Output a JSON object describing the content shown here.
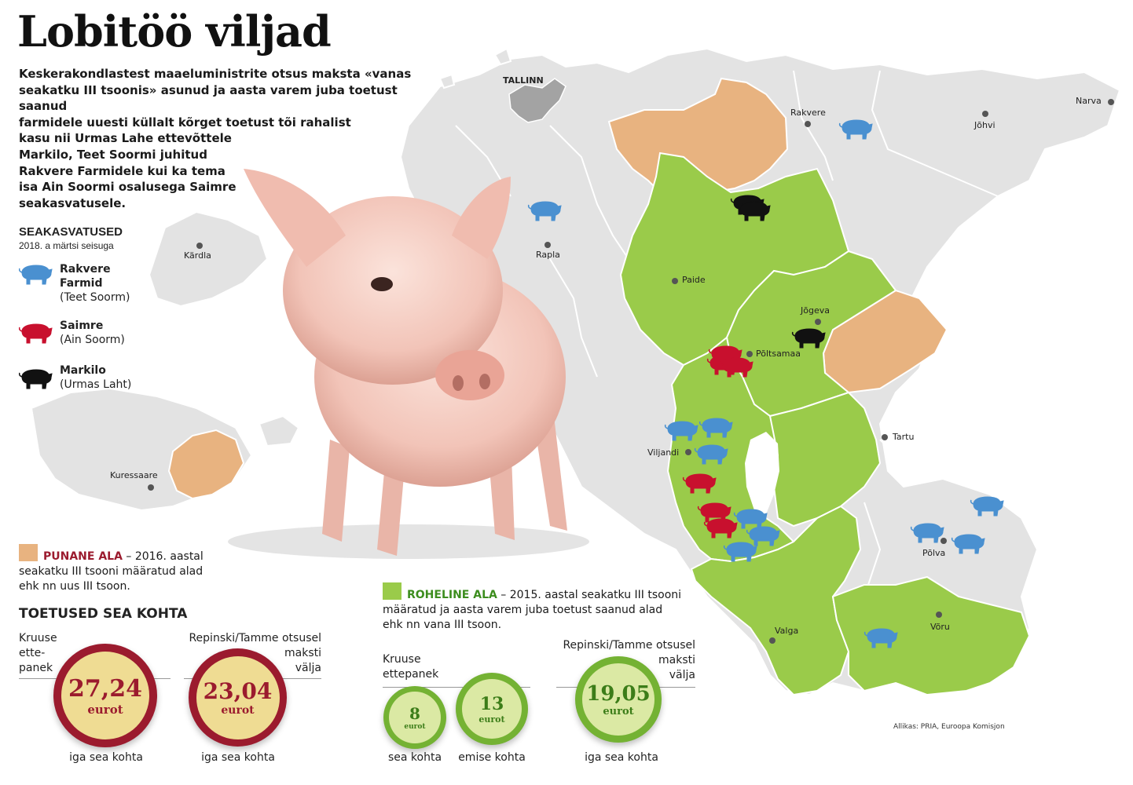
{
  "title": "Lobitöö viljad",
  "intro_lines": [
    "Keskerakondlastest maaeluministrite otsus maksta «vanas",
    "seakatku III tsoonis» asunud ja aasta varem juba toetust saanud",
    "farmidele uuesti küllalt kõrget toetust tõi rahalist",
    "kasu nii Urmas Lahe ettevõttele",
    "Markilo, Teet Soormi juhitud",
    "Rakvere Farmidele kui ka tema",
    "isa Ain Soormi osalusega Saimre",
    "seakasvatusele."
  ],
  "legend": {
    "title": "SEAKASVATUSED",
    "subtitle": "2018. a märtsi seisuga",
    "items": [
      {
        "name_line1": "Rakvere",
        "name_line2": "Farmid",
        "owner": "(Teet Soorm)",
        "color": "#4a90d0"
      },
      {
        "name_line1": "Saimre",
        "name_line2": "",
        "owner": "(Ain Soorm)",
        "color": "#c8102e"
      },
      {
        "name_line1": "Markilo",
        "name_line2": "",
        "owner": "(Urmas Laht)",
        "color": "#111111"
      }
    ]
  },
  "cities": {
    "tallinn": "TALLINN",
    "rakvere": "Rakvere",
    "johvi": "Jõhvi",
    "narva": "Narva",
    "rapla": "Rapla",
    "kardla": "Kärdla",
    "paide": "Paide",
    "jogeva": "Jõgeva",
    "poltsamaa": "Põltsamaa",
    "tartu": "Tartu",
    "viljandi": "Viljandi",
    "kuressaare": "Kuressaare",
    "polva": "Põlva",
    "valga": "Valga",
    "voru": "Võru"
  },
  "zones": {
    "red": {
      "keyword": "PUNANE ALA",
      "text1": " – 2016. aastal",
      "text2": "seakatku III tsooni määratud alad",
      "text3": "ehk nn uus III tsoon.",
      "color": "#e8b380",
      "keyword_color": "#9b1b2e"
    },
    "green": {
      "keyword": "ROHELINE ALA",
      "text1": " – 2015. aastal seakatku III tsooni",
      "text2": "määratud ja aasta varem juba toetust saanud alad",
      "text3": "ehk nn vana III tsoon.",
      "color": "#9acb4a",
      "keyword_color": "#3c8d1e"
    }
  },
  "support": {
    "title": "TOETUSED SEA KOHTA",
    "red_left_label": [
      "Kruuse",
      "ette-",
      "panek"
    ],
    "red_right_label": [
      "Repinski/Tamme otsusel",
      "maksti",
      "välja"
    ],
    "red_left": {
      "value": "27,24",
      "unit": "eurot",
      "caption": "iga sea kohta"
    },
    "red_right": {
      "value": "23,04",
      "unit": "eurot",
      "caption": "iga sea kohta"
    },
    "green_left_label": [
      "Kruuse",
      "ettepanek"
    ],
    "green_right_label": [
      "Repinski/Tamme otsusel",
      "maksti",
      "välja"
    ],
    "green_a": {
      "value": "8",
      "unit": "eurot",
      "caption": "sea kohta"
    },
    "green_b": {
      "value": "13",
      "unit": "eurot",
      "caption": "emise kohta"
    },
    "green_c": {
      "value": "19,05",
      "unit": "eurot",
      "caption": "iga sea kohta"
    }
  },
  "source": "Allikas: PRIA, Euroopa Komisjon"
}
